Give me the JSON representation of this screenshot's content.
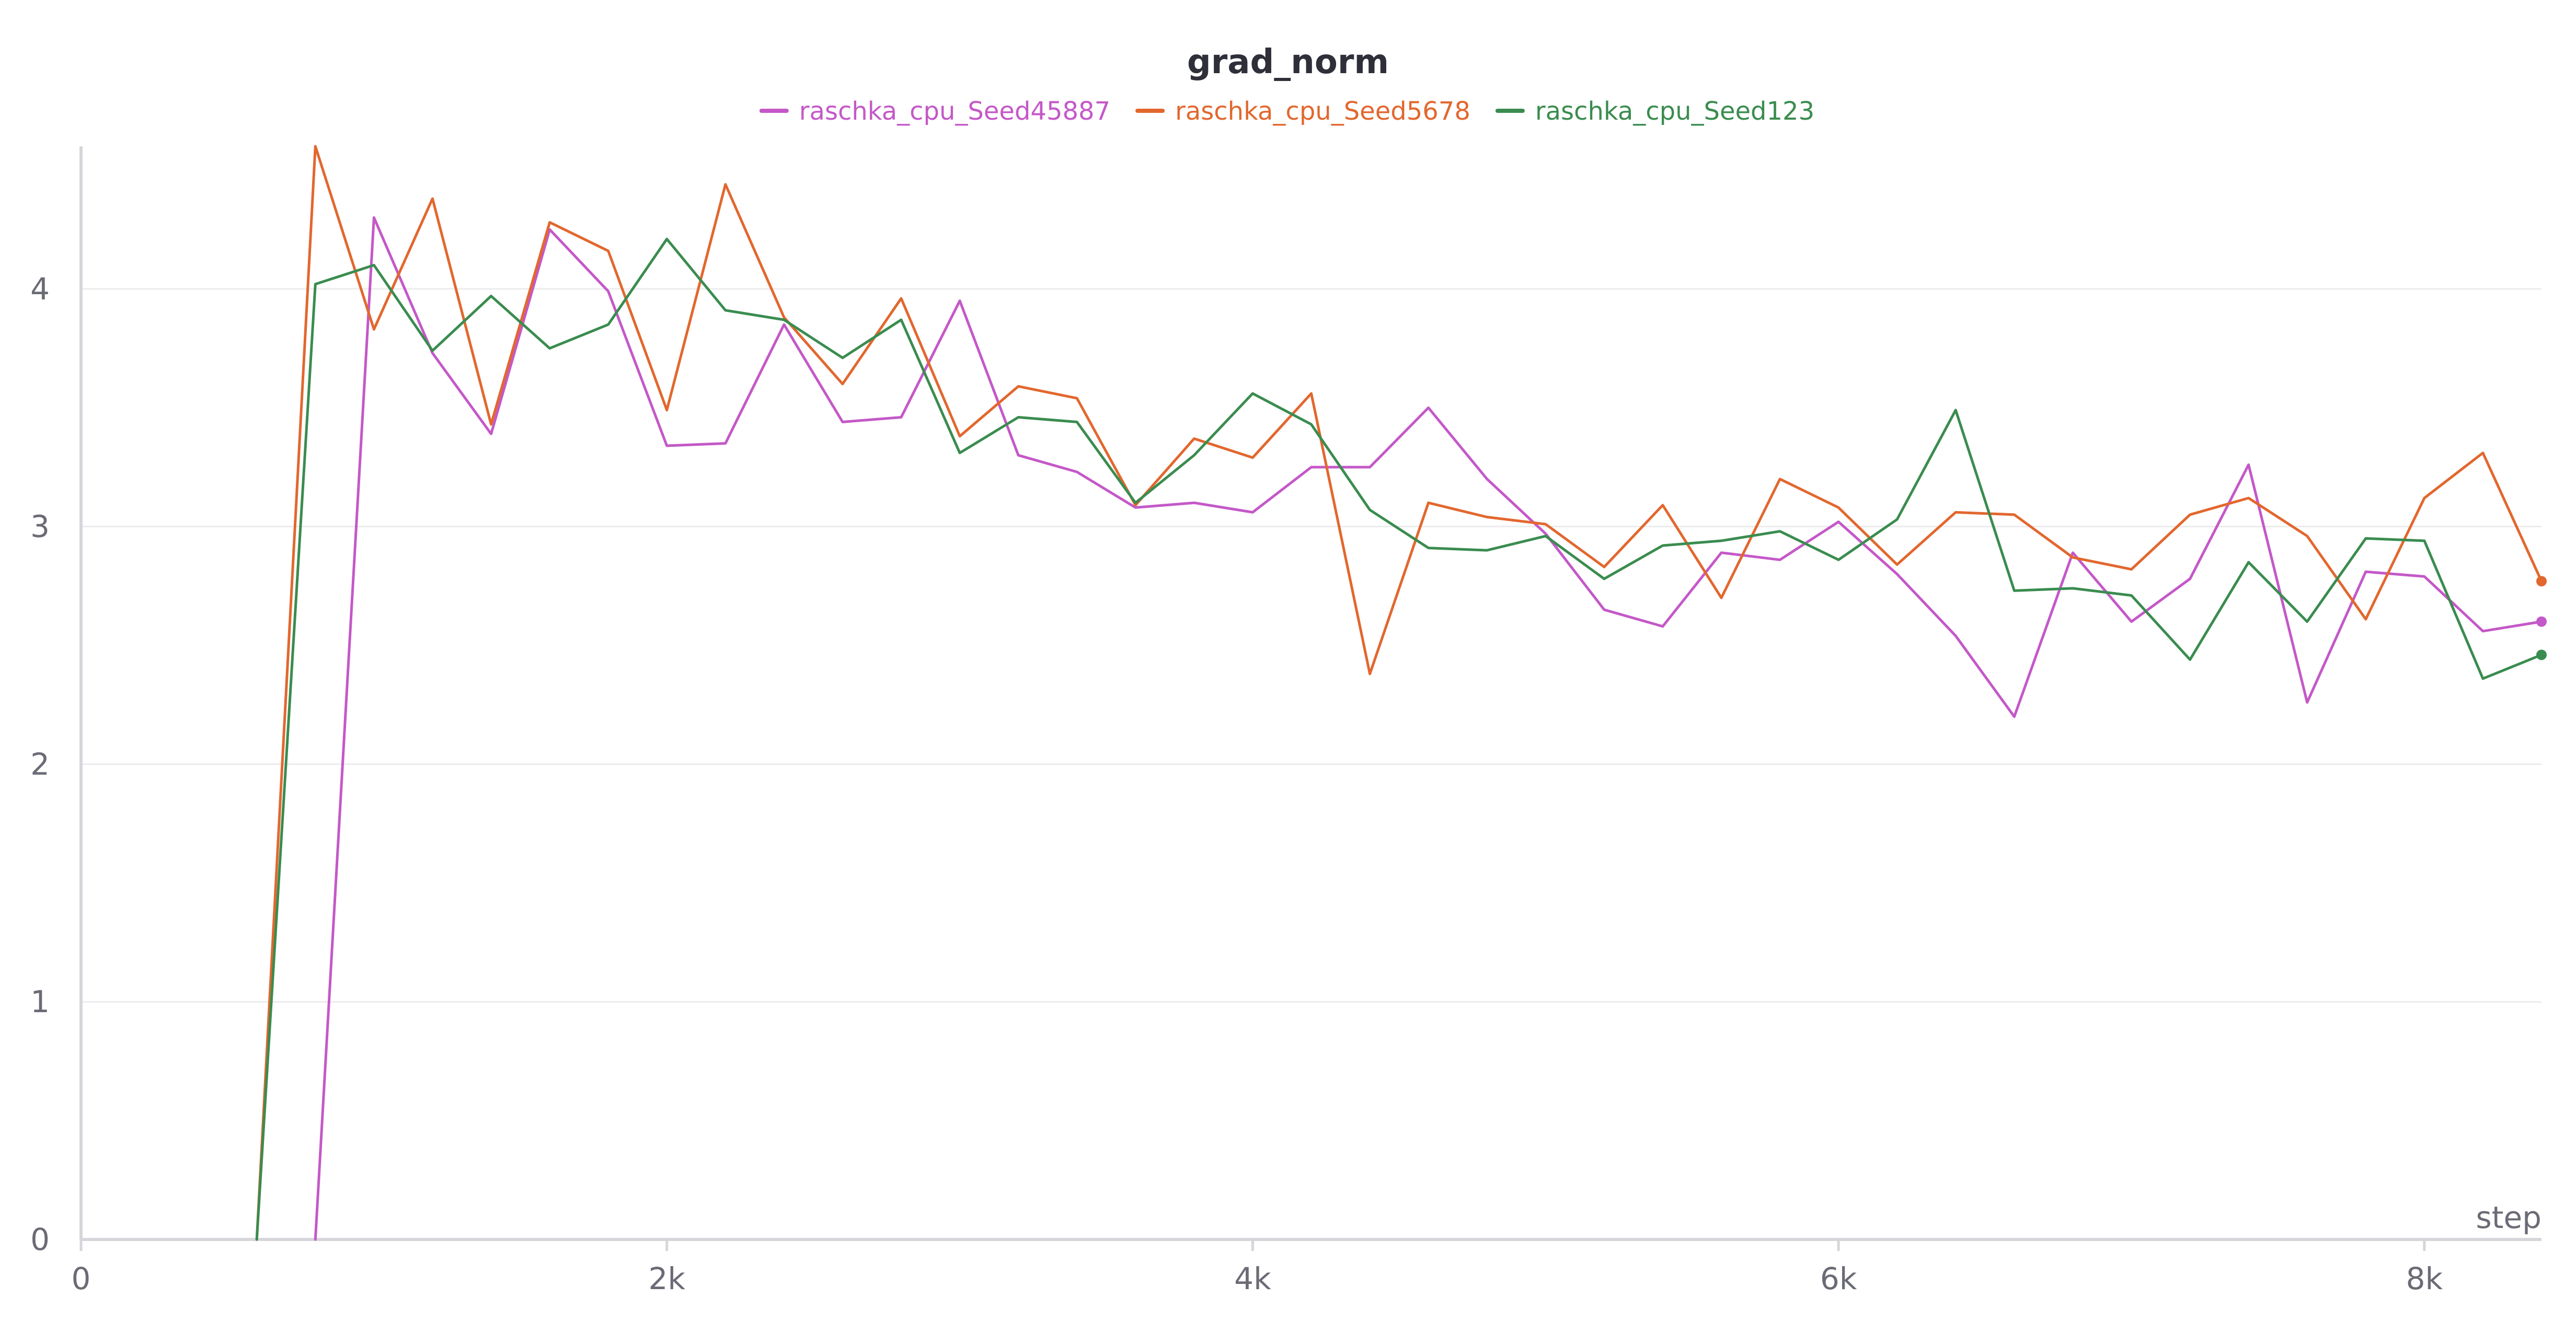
{
  "chart_data": {
    "type": "line",
    "title": "grad_norm",
    "xlabel": "step",
    "ylabel": "",
    "xlim": [
      0,
      8400
    ],
    "ylim": [
      0,
      4.6
    ],
    "x_ticks": [
      0,
      2000,
      4000,
      6000,
      8000
    ],
    "x_tick_labels": [
      "0",
      "2k",
      "4k",
      "6k",
      "8k"
    ],
    "y_ticks": [
      0,
      1,
      2,
      3,
      4
    ],
    "y_tick_labels": [
      "0",
      "1",
      "2",
      "3",
      "4"
    ],
    "grid": true,
    "legend_position": "top",
    "series": [
      {
        "name": "raschka_cpu_Seed45887",
        "color": "#c458c8",
        "x": [
          800,
          1000,
          1200,
          1400,
          1600,
          1800,
          2000,
          2200,
          2400,
          2600,
          2800,
          3000,
          3200,
          3400,
          3600,
          3800,
          4000,
          4200,
          4400,
          4600,
          4800,
          5000,
          5200,
          5400,
          5600,
          5800,
          6000,
          6200,
          6400,
          6600,
          6800,
          7000,
          7200,
          7400,
          7600,
          7800,
          8000,
          8200,
          8400
        ],
        "y": [
          0,
          4.3,
          3.73,
          3.39,
          4.25,
          3.99,
          3.34,
          3.35,
          3.85,
          3.44,
          3.46,
          3.95,
          3.3,
          3.23,
          3.08,
          3.1,
          3.06,
          3.25,
          3.25,
          3.5,
          3.2,
          2.97,
          2.65,
          2.58,
          2.89,
          2.86,
          3.02,
          2.8,
          2.54,
          2.2,
          2.89,
          2.6,
          2.78,
          3.26,
          2.26,
          2.81,
          2.79,
          2.56,
          2.6
        ]
      },
      {
        "name": "raschka_cpu_Seed5678",
        "color": "#e2672e",
        "x": [
          600,
          800,
          1000,
          1200,
          1400,
          1600,
          1800,
          2000,
          2200,
          2400,
          2600,
          2800,
          3000,
          3200,
          3400,
          3600,
          3800,
          4000,
          4200,
          4400,
          4600,
          4800,
          5000,
          5200,
          5400,
          5600,
          5800,
          6000,
          6200,
          6400,
          6600,
          6800,
          7000,
          7200,
          7400,
          7600,
          7800,
          8000,
          8200,
          8400
        ],
        "y": [
          0,
          4.6,
          3.83,
          4.38,
          3.43,
          4.28,
          4.16,
          3.49,
          4.44,
          3.88,
          3.6,
          3.96,
          3.38,
          3.59,
          3.54,
          3.09,
          3.37,
          3.29,
          3.56,
          2.38,
          3.1,
          3.04,
          3.01,
          2.83,
          3.09,
          2.7,
          3.2,
          3.08,
          2.84,
          3.06,
          3.05,
          2.87,
          2.82,
          3.05,
          3.12,
          2.96,
          2.61,
          3.12,
          3.31,
          2.77
        ]
      },
      {
        "name": "raschka_cpu_Seed123",
        "color": "#3a8c4f",
        "x": [
          600,
          800,
          1000,
          1200,
          1400,
          1600,
          1800,
          2000,
          2200,
          2400,
          2600,
          2800,
          3000,
          3200,
          3400,
          3600,
          3800,
          4000,
          4200,
          4400,
          4600,
          4800,
          5000,
          5200,
          5400,
          5600,
          5800,
          6000,
          6200,
          6400,
          6600,
          6800,
          7000,
          7200,
          7400,
          7600,
          7800,
          8000,
          8200,
          8400
        ],
        "y": [
          0,
          4.02,
          4.1,
          3.74,
          3.97,
          3.75,
          3.85,
          4.21,
          3.91,
          3.87,
          3.71,
          3.87,
          3.31,
          3.46,
          3.44,
          3.1,
          3.3,
          3.56,
          3.43,
          3.07,
          2.91,
          2.9,
          2.96,
          2.78,
          2.92,
          2.94,
          2.98,
          2.86,
          3.03,
          3.49,
          2.73,
          2.74,
          2.71,
          2.44,
          2.85,
          2.6,
          2.95,
          2.94,
          2.36,
          2.46
        ]
      }
    ]
  }
}
